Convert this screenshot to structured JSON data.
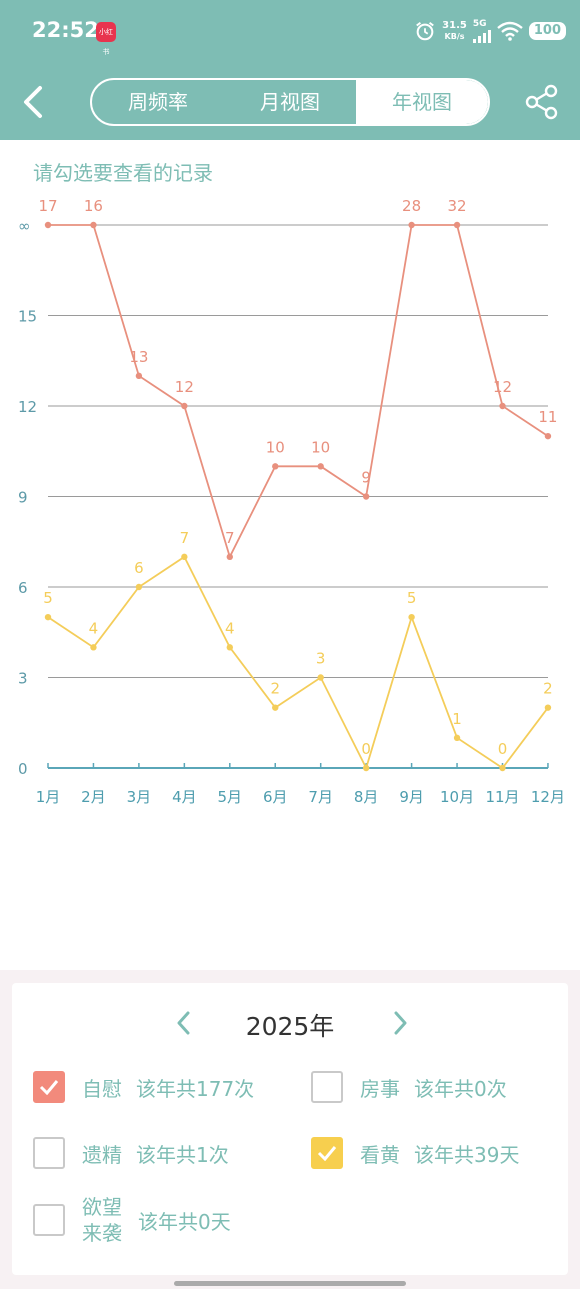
{
  "status": {
    "time": "22:52",
    "notif_app": "小红书",
    "speed_value": "31.5",
    "speed_unit": "KB/s",
    "network": "5G",
    "battery": "100"
  },
  "header": {
    "tabs": [
      "周频率",
      "月视图",
      "年视图"
    ],
    "active_tab": 2
  },
  "chart": {
    "hint": "请勾选要查看的记录"
  },
  "chart_data": {
    "type": "line",
    "categories": [
      "1月",
      "2月",
      "3月",
      "4月",
      "5月",
      "6月",
      "7月",
      "8月",
      "9月",
      "10月",
      "11月",
      "12月"
    ],
    "y_tick_labels": [
      "0",
      "3",
      "6",
      "9",
      "12",
      "15",
      "∞"
    ],
    "y_tick_values": [
      0,
      3,
      6,
      9,
      12,
      15,
      18
    ],
    "series": [
      {
        "name": "自慰",
        "color": "#e8907e",
        "labels": [
          17,
          16,
          13,
          12,
          7,
          10,
          10,
          9,
          28,
          32,
          12,
          11
        ],
        "values": [
          18,
          18,
          13,
          12,
          7,
          10,
          10,
          9,
          18,
          18,
          12,
          11
        ]
      },
      {
        "name": "看黄",
        "color": "#f4cd5a",
        "labels": [
          5,
          4,
          6,
          7,
          4,
          2,
          3,
          0,
          5,
          1,
          0,
          2
        ],
        "values": [
          5,
          4,
          6,
          7,
          4,
          2,
          3,
          0,
          5,
          1,
          0,
          2
        ]
      }
    ],
    "ylim": [
      0,
      18
    ],
    "grid": true,
    "axis_color": "#5aa6b8"
  },
  "panel": {
    "year": "2025年",
    "records": [
      {
        "name": "自慰",
        "total": "该年共177次",
        "checked": true,
        "color": "#f28a7c"
      },
      {
        "name": "房事",
        "total": "该年共0次",
        "checked": false,
        "color": ""
      },
      {
        "name": "遗精",
        "total": "该年共1次",
        "checked": false,
        "color": ""
      },
      {
        "name": "看黄",
        "total": "该年共39天",
        "checked": true,
        "color": "#f7cf4e"
      },
      {
        "name": "欲望来袭",
        "name_line1": "欲望",
        "name_line2": "来袭",
        "total": "该年共0天",
        "checked": false,
        "color": ""
      }
    ]
  }
}
